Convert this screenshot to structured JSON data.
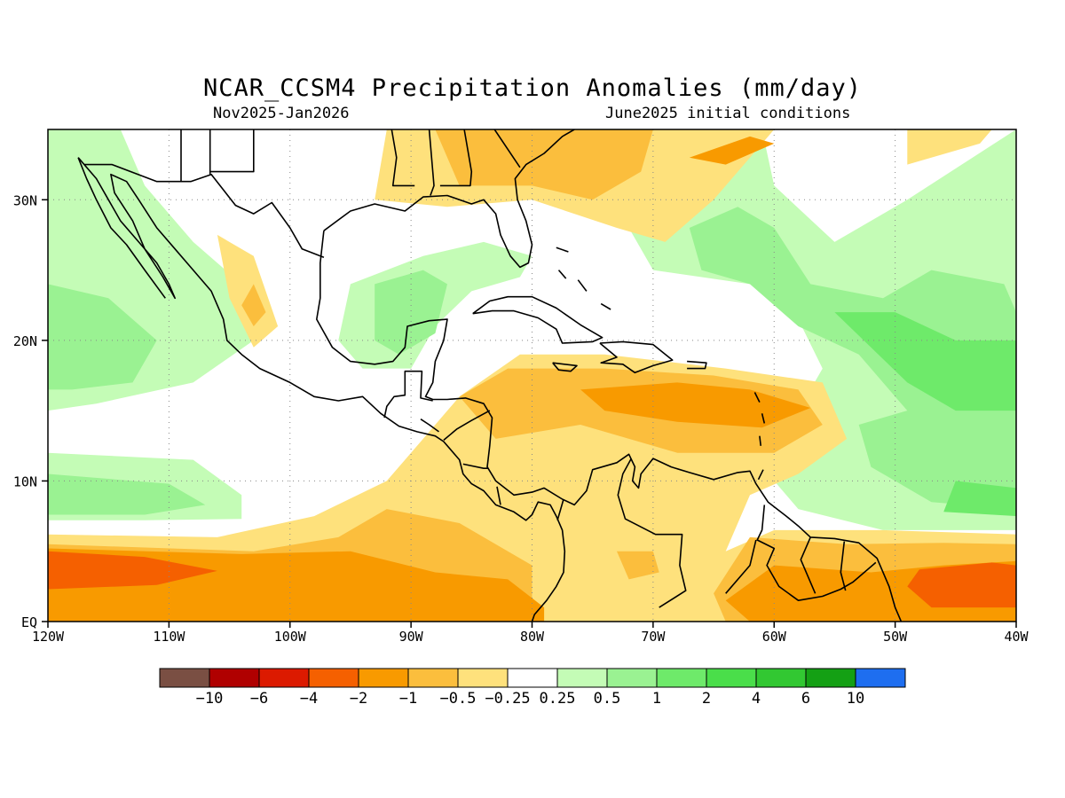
{
  "title": "NCAR_CCSM4 Precipitation Anomalies (mm/day)",
  "subtitle_left": "Nov2025-Jan2026",
  "subtitle_right": "June2025 initial conditions",
  "x_axis": {
    "ticks": [
      "120W",
      "110W",
      "100W",
      "90W",
      "80W",
      "70W",
      "60W",
      "50W",
      "40W"
    ]
  },
  "y_axis": {
    "ticks": [
      "EQ",
      "10N",
      "20N",
      "30N"
    ]
  },
  "colorbar": {
    "colors": [
      "#7a4f43",
      "#b00000",
      "#dc1a00",
      "#f56000",
      "#f89a00",
      "#fbbe3d",
      "#fee17c",
      "#ffffff",
      "#c4fcb6",
      "#9af292",
      "#6eea6a",
      "#4ade4a",
      "#32c832",
      "#14a014",
      "#1e6ef0"
    ],
    "labels": [
      "-10",
      "-6",
      "-4",
      "-2",
      "-1",
      "-0.5",
      "-0.25",
      "0.25",
      "0.5",
      "1",
      "2",
      "4",
      "6",
      "10"
    ]
  },
  "map_palette": {
    "dry_heavy": "#f56000",
    "dry_mod": "#f89a00",
    "dry_light": "#fbbe3d",
    "dry_slight": "#fee17c",
    "wet_slight": "#c4fcb6",
    "wet_light": "#9af292",
    "wet_mod": "#6eea6a",
    "wet_heavy": "#4ade4a",
    "coast": "#000000"
  }
}
